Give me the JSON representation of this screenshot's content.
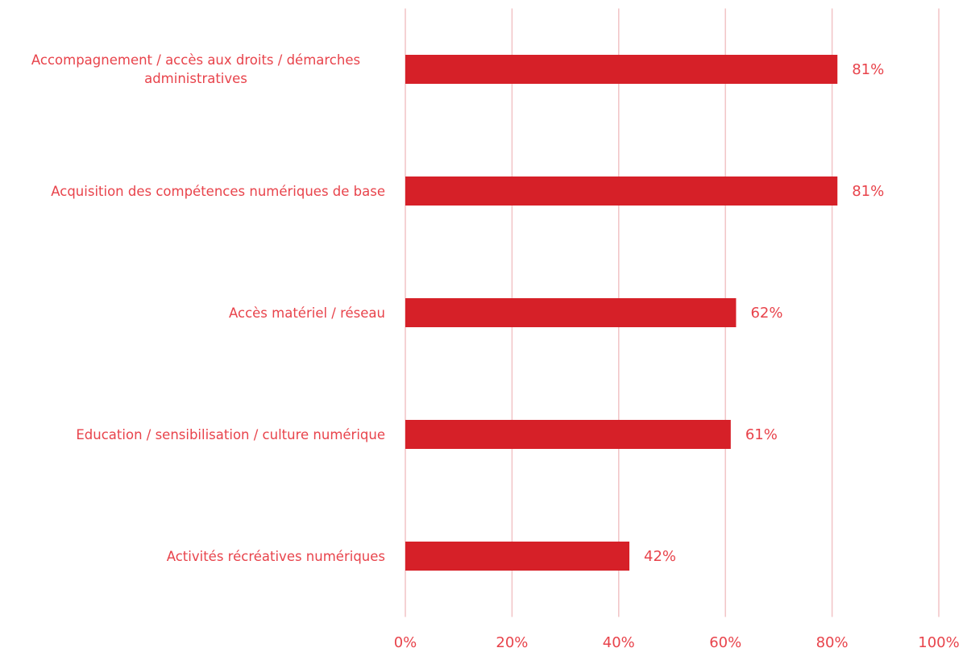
{
  "chart_data": {
    "type": "bar",
    "orientation": "horizontal",
    "categories": [
      "Accompagnement / accès aux droits / démarches administratives",
      "Acquisition des compétences numériques de base",
      "Accès matériel /  réseau",
      "Education / sensibilisation / culture numérique",
      "Activités récréatives numériques"
    ],
    "values": [
      81,
      81,
      62,
      61,
      42
    ],
    "value_labels": [
      "81%",
      "81%",
      "62%",
      "61%",
      "42%"
    ],
    "color": "#d62028",
    "xlim": [
      0,
      100
    ],
    "xticks": [
      {
        "value": 0,
        "label": "0%"
      },
      {
        "value": 20,
        "label": "20%"
      },
      {
        "value": 40,
        "label": "40%"
      },
      {
        "value": 60,
        "label": "60%"
      },
      {
        "value": 80,
        "label": "80%"
      },
      {
        "value": 100,
        "label": "100%"
      }
    ],
    "grid": true
  }
}
